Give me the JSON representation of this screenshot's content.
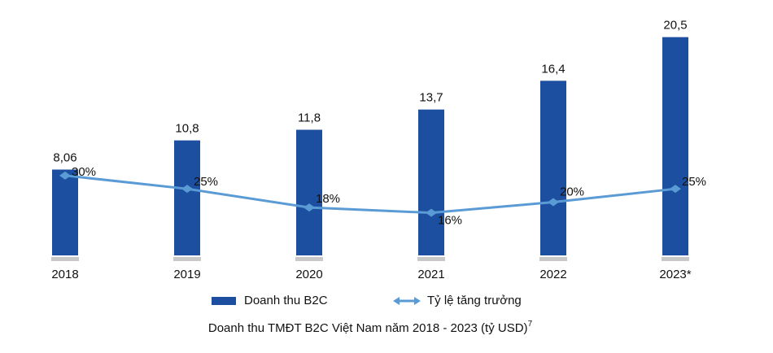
{
  "chart_data": {
    "type": "combo",
    "title": "Doanh thu TMĐT B2C Việt Nam năm 2018 - 2023 (tỷ USD)",
    "title_footnote": "7",
    "categories": [
      "2018",
      "2019",
      "2020",
      "2021",
      "2022",
      "2023*"
    ],
    "series": [
      {
        "name": "Doanh thu B2C",
        "type": "bar",
        "color": "#1c4f9f",
        "values": [
          8.06,
          10.8,
          11.8,
          13.7,
          16.4,
          20.5
        ],
        "value_labels": [
          "8,06",
          "10,8",
          "11,8",
          "13,7",
          "16,4",
          "20,5"
        ]
      },
      {
        "name": "Tỷ lệ tăng trưởng",
        "type": "line",
        "axis": "y2",
        "color": "#5b9bd5",
        "values": [
          30,
          25,
          18,
          16,
          20,
          25
        ],
        "value_labels": [
          "30%",
          "25%",
          "18%",
          "16%",
          "20%",
          "25%"
        ]
      }
    ],
    "ylim": [
      0,
      22
    ],
    "y2lim": [
      0,
      88
    ],
    "legend": "bottom"
  }
}
